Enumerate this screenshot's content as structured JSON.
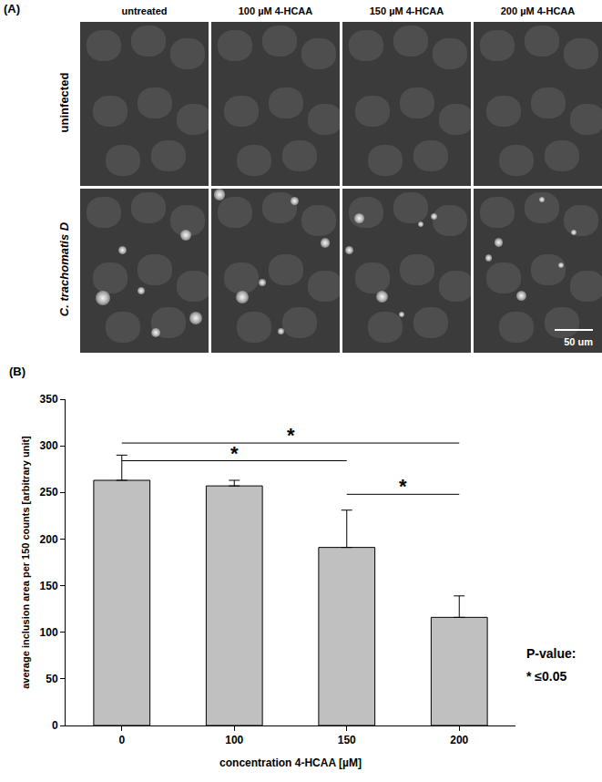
{
  "panel_a": {
    "label": "(A)",
    "columns": [
      "untreated",
      "100 µM 4-HCAA",
      "150 µM 4-HCAA",
      "200 µM 4-HCAA"
    ],
    "rows": [
      "uninfected",
      "C. trachomatis D"
    ],
    "scale_bar": "50 um"
  },
  "chart_data": {
    "type": "bar",
    "panel_label": "(B)",
    "categories": [
      "0",
      "100",
      "150",
      "200"
    ],
    "values": [
      263,
      257,
      191,
      116
    ],
    "errors": [
      27,
      6,
      40,
      23
    ],
    "color": "#c0c0c0",
    "x_label": "concentration 4-HCAA [µM]",
    "y_label": "average inclusion area per 150 counts [arbitrary unit]",
    "ylim": [
      0,
      350
    ],
    "yticks": [
      0,
      50,
      100,
      150,
      200,
      250,
      300,
      350
    ],
    "grid": false,
    "significance": [
      {
        "from": "0",
        "to": "200",
        "y": 303,
        "label": "*"
      },
      {
        "from": "0",
        "to": "150",
        "y": 284,
        "label": "*"
      },
      {
        "from": "150",
        "to": "200",
        "y": 248,
        "label": "*"
      }
    ],
    "annotations": [
      "P-value:",
      "* ≤0.05"
    ]
  }
}
